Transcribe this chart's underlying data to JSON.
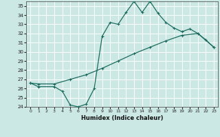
{
  "xlabel": "Humidex (Indice chaleur)",
  "bg_color": "#cce8e4",
  "grid_color": "#ffffff",
  "line_color": "#1a6b5e",
  "xlim": [
    -0.5,
    23.5
  ],
  "ylim": [
    24,
    35.5
  ],
  "xtick_labels": [
    "0",
    "1",
    "2",
    "3",
    "4",
    "5",
    "6",
    "7",
    "8",
    "9",
    "10",
    "11",
    "12",
    "13",
    "14",
    "15",
    "16",
    "17",
    "18",
    "19",
    "20",
    "21",
    "22",
    "23"
  ],
  "xticks": [
    0,
    1,
    2,
    3,
    4,
    5,
    6,
    7,
    8,
    9,
    10,
    11,
    12,
    13,
    14,
    15,
    16,
    17,
    18,
    19,
    20,
    21,
    22,
    23
  ],
  "yticks": [
    24,
    25,
    26,
    27,
    28,
    29,
    30,
    31,
    32,
    33,
    34,
    35
  ],
  "line1_x": [
    0,
    1,
    3,
    4,
    5,
    6,
    7,
    8,
    9,
    10,
    11,
    12,
    13,
    14,
    15,
    16,
    17,
    18,
    19,
    20,
    21,
    22,
    23
  ],
  "line1_y": [
    26.6,
    26.2,
    26.2,
    25.7,
    24.2,
    24.0,
    24.3,
    26.0,
    31.7,
    33.2,
    33.0,
    34.3,
    35.5,
    34.3,
    35.5,
    34.2,
    33.2,
    32.6,
    32.2,
    32.5,
    32.0,
    31.3,
    30.5
  ],
  "line2_x": [
    0,
    1,
    3,
    5,
    7,
    9,
    11,
    13,
    15,
    17,
    19,
    21,
    23
  ],
  "line2_y": [
    26.6,
    26.5,
    26.5,
    27.0,
    27.5,
    28.2,
    29.0,
    29.8,
    30.5,
    31.2,
    31.8,
    32.0,
    30.5
  ]
}
